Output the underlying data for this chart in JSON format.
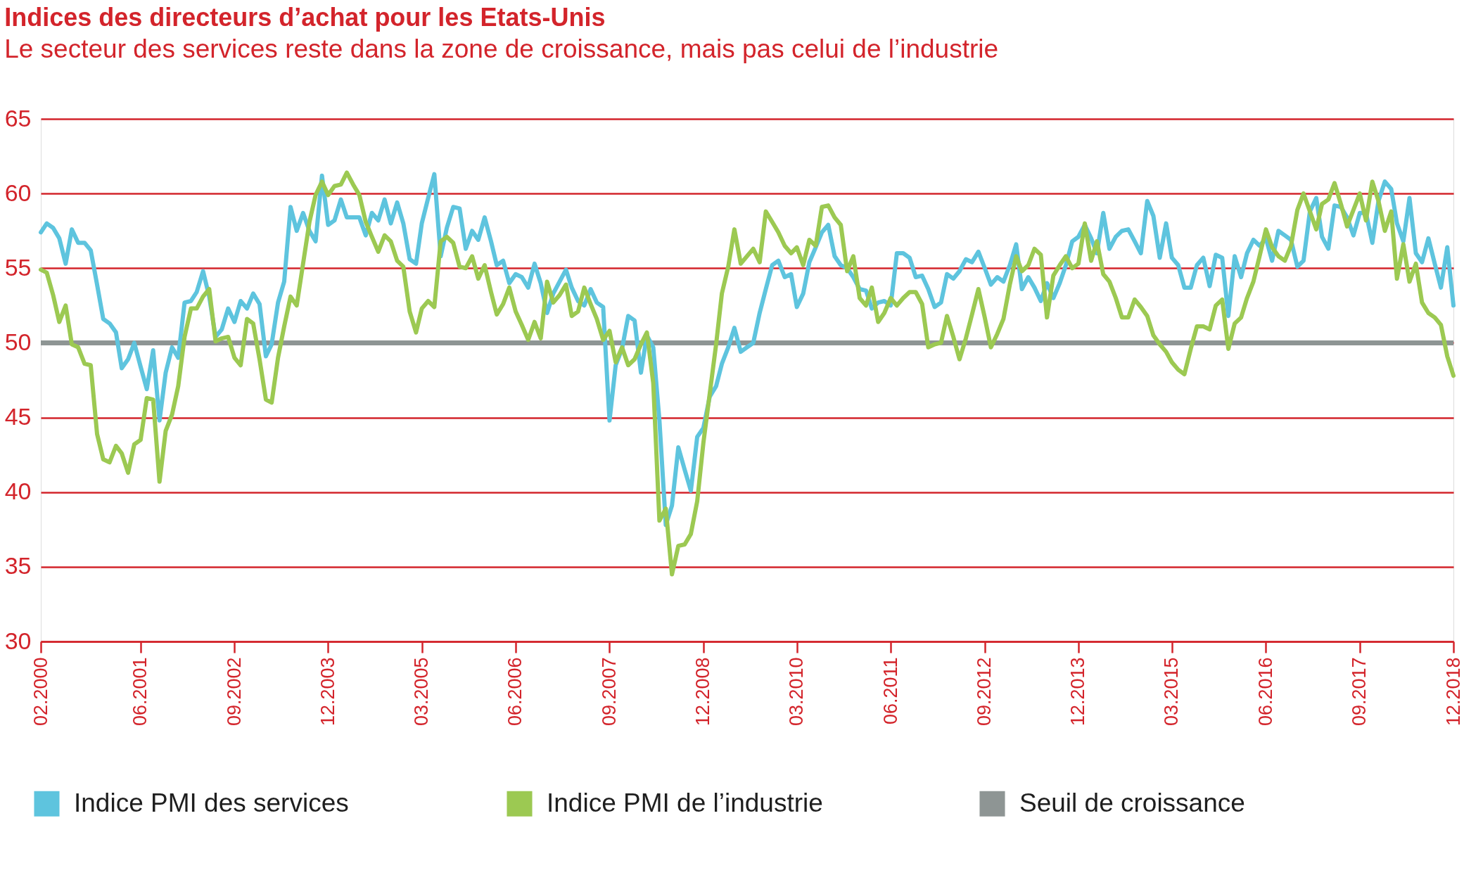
{
  "chart_data": {
    "type": "line",
    "title": "Indices des directeurs d’achat pour les Etats-Unis",
    "subtitle": "Le secteur des services reste dans la zone de croissance, mais pas celui de l’industrie",
    "x": [
      "2000-02",
      "2000-03",
      "2000-04",
      "2000-05",
      "2000-06",
      "2000-07",
      "2000-08",
      "2000-09",
      "2000-10",
      "2000-11",
      "2000-12",
      "2001-01",
      "2001-02",
      "2001-03",
      "2001-04",
      "2001-05",
      "2001-06",
      "2001-07",
      "2001-08",
      "2001-09",
      "2001-10",
      "2001-11",
      "2001-12",
      "2002-01",
      "2002-02",
      "2002-03",
      "2002-04",
      "2002-05",
      "2002-06",
      "2002-07",
      "2002-08",
      "2002-09",
      "2002-10",
      "2002-11",
      "2002-12",
      "2003-01",
      "2003-02",
      "2003-03",
      "2003-04",
      "2003-05",
      "2003-06",
      "2003-07",
      "2003-08",
      "2003-09",
      "2003-10",
      "2003-11",
      "2003-12",
      "2004-01",
      "2004-02",
      "2004-03",
      "2004-04",
      "2004-05",
      "2004-06",
      "2004-07",
      "2004-08",
      "2004-09",
      "2004-10",
      "2004-11",
      "2004-12",
      "2005-01",
      "2005-02",
      "2005-03",
      "2005-04",
      "2005-05",
      "2005-06",
      "2005-07",
      "2005-08",
      "2005-09",
      "2005-10",
      "2005-11",
      "2005-12",
      "2006-01",
      "2006-02",
      "2006-03",
      "2006-04",
      "2006-05",
      "2006-06",
      "2006-07",
      "2006-08",
      "2006-09",
      "2006-10",
      "2006-11",
      "2006-12",
      "2007-01",
      "2007-02",
      "2007-03",
      "2007-04",
      "2007-05",
      "2007-06",
      "2007-07",
      "2007-08",
      "2007-09",
      "2007-10",
      "2007-11",
      "2007-12",
      "2008-01",
      "2008-02",
      "2008-03",
      "2008-04",
      "2008-05",
      "2008-06",
      "2008-07",
      "2008-08",
      "2008-09",
      "2008-10",
      "2008-11",
      "2008-12",
      "2009-01",
      "2009-02",
      "2009-03",
      "2009-04",
      "2009-05",
      "2009-06",
      "2009-07",
      "2009-08",
      "2009-09",
      "2009-10",
      "2009-11",
      "2009-12",
      "2010-01",
      "2010-02",
      "2010-03",
      "2010-04",
      "2010-05",
      "2010-06",
      "2010-07",
      "2010-08",
      "2010-09",
      "2010-10",
      "2010-11",
      "2010-12",
      "2011-01",
      "2011-02",
      "2011-03",
      "2011-04",
      "2011-05",
      "2011-06",
      "2011-07",
      "2011-08",
      "2011-09",
      "2011-10",
      "2011-11",
      "2011-12",
      "2012-01",
      "2012-02",
      "2012-03",
      "2012-04",
      "2012-05",
      "2012-06",
      "2012-07",
      "2012-08",
      "2012-09",
      "2012-10",
      "2012-11",
      "2012-12",
      "2013-01",
      "2013-02",
      "2013-03",
      "2013-04",
      "2013-05",
      "2013-06",
      "2013-07",
      "2013-08",
      "2013-09",
      "2013-10",
      "2013-11",
      "2013-12",
      "2014-01",
      "2014-02",
      "2014-03",
      "2014-04",
      "2014-05",
      "2014-06",
      "2014-07",
      "2014-08",
      "2014-09",
      "2014-10",
      "2014-11",
      "2014-12",
      "2015-01",
      "2015-02",
      "2015-03",
      "2015-04",
      "2015-05",
      "2015-06",
      "2015-07",
      "2015-08",
      "2015-09",
      "2015-10",
      "2015-11",
      "2015-12",
      "2016-01",
      "2016-02",
      "2016-03",
      "2016-04",
      "2016-05",
      "2016-06",
      "2016-07",
      "2016-08",
      "2016-09",
      "2016-10",
      "2016-11",
      "2016-12",
      "2017-01",
      "2017-02",
      "2017-03",
      "2017-04",
      "2017-05",
      "2017-06",
      "2017-07",
      "2017-08",
      "2017-09",
      "2017-10",
      "2017-11",
      "2017-12",
      "2018-01",
      "2018-02",
      "2018-03",
      "2018-04",
      "2018-05",
      "2018-06",
      "2018-07",
      "2018-08",
      "2018-09",
      "2018-10",
      "2018-11",
      "2018-12"
    ],
    "xlim": [
      "2000-02",
      "2018-12"
    ],
    "xticks": [
      {
        "value": "2000-02",
        "label": "02.2000"
      },
      {
        "value": "2001-06",
        "label": "06.2001"
      },
      {
        "value": "2002-09",
        "label": "09.2002"
      },
      {
        "value": "2003-12",
        "label": "12.2003"
      },
      {
        "value": "2005-03",
        "label": "03.2005"
      },
      {
        "value": "2006-06",
        "label": "06.2006"
      },
      {
        "value": "2007-09",
        "label": "09.2007"
      },
      {
        "value": "2008-12",
        "label": "12.2008"
      },
      {
        "value": "2010-03",
        "label": "03.2010"
      },
      {
        "value": "2011-06",
        "label": "06.2011"
      },
      {
        "value": "2012-09",
        "label": "09.2012"
      },
      {
        "value": "2013-12",
        "label": "12.2013"
      },
      {
        "value": "2015-03",
        "label": "03.2015"
      },
      {
        "value": "2016-06",
        "label": "06.2016"
      },
      {
        "value": "2017-09",
        "label": "09.2017"
      },
      {
        "value": "2018-12",
        "label": "12.2018"
      }
    ],
    "ylim": [
      30,
      65
    ],
    "yticks": [
      30,
      35,
      40,
      45,
      50,
      55,
      60,
      65
    ],
    "series": [
      {
        "name": "Indice PMI des services",
        "color": "#5ec4de",
        "values": [
          57.4,
          58.0,
          57.7,
          57.0,
          55.3,
          57.6,
          56.7,
          56.7,
          56.2,
          53.9,
          51.6,
          51.3,
          50.7,
          48.3,
          48.9,
          50.0,
          48.4,
          46.9,
          49.5,
          44.8,
          48.0,
          49.7,
          49.0,
          52.7,
          52.8,
          53.4,
          54.8,
          53.1,
          50.4,
          50.9,
          52.3,
          51.4,
          52.8,
          52.3,
          53.3,
          52.6,
          49.1,
          49.9,
          52.7,
          54.1,
          59.1,
          57.5,
          58.7,
          57.5,
          56.8,
          61.2,
          57.9,
          58.2,
          59.6,
          58.4,
          58.4,
          58.4,
          57.2,
          58.7,
          58.2,
          59.6,
          58.0,
          59.4,
          58.0,
          55.6,
          55.3,
          58.0,
          59.7,
          61.3,
          55.8,
          57.7,
          59.1,
          59.0,
          56.3,
          57.5,
          56.9,
          58.4,
          56.8,
          55.2,
          55.5,
          54.0,
          54.6,
          54.4,
          53.7,
          55.3,
          54.0,
          52.0,
          53.3,
          54.1,
          54.9,
          53.7,
          52.8,
          52.5,
          53.6,
          52.7,
          52.4,
          44.8,
          48.5,
          49.6,
          51.8,
          51.5,
          48.0,
          50.5,
          49.7,
          44.8,
          37.8,
          39.1,
          43.0,
          41.5,
          40.1,
          43.7,
          44.3,
          46.4,
          47.1,
          48.6,
          49.7,
          51.0,
          49.4,
          49.7,
          50.0,
          52.0,
          53.6,
          55.2,
          55.5,
          54.4,
          54.6,
          52.4,
          53.3,
          55.4,
          56.4,
          57.4,
          57.9,
          55.8,
          55.2,
          55.0,
          54.4,
          53.6,
          53.5,
          52.3,
          52.7,
          52.8,
          52.5,
          56.0,
          56.0,
          55.7,
          54.4,
          54.5,
          53.6,
          52.4,
          52.7,
          54.6,
          54.3,
          54.8,
          55.6,
          55.4,
          56.1,
          55.0,
          53.9,
          54.4,
          54.1,
          55.2,
          56.6,
          53.6,
          54.4,
          53.7,
          52.8,
          54.0,
          53.0,
          54.0,
          55.2,
          56.8,
          57.1,
          57.9,
          57.0,
          56.0,
          58.7,
          56.3,
          57.1,
          57.5,
          57.6,
          56.8,
          56.0,
          59.5,
          58.5,
          55.7,
          58.0,
          55.7,
          55.2,
          53.7,
          53.7,
          55.2,
          55.7,
          53.8,
          55.9,
          55.7,
          51.8,
          55.8,
          54.4,
          56.0,
          56.9,
          56.5,
          57.0,
          55.5,
          57.5,
          57.2,
          56.9,
          55.1,
          55.5,
          58.8,
          59.7,
          57.1,
          56.3,
          59.2,
          59.1,
          58.4,
          57.2,
          58.7,
          58.7,
          56.7,
          59.5,
          60.8,
          60.3,
          58.0,
          56.8,
          59.7,
          56.0,
          55.4,
          57.0,
          55.3,
          53.7,
          56.4,
          52.5
        ]
      },
      {
        "name": "Indice PMI de l’industrie",
        "color": "#9cc952",
        "values": [
          54.9,
          54.7,
          53.2,
          51.4,
          52.5,
          49.9,
          49.7,
          48.6,
          48.5,
          43.9,
          42.2,
          42.0,
          43.1,
          42.6,
          41.3,
          43.2,
          43.5,
          46.3,
          46.2,
          40.7,
          44.1,
          45.2,
          47.1,
          50.4,
          52.3,
          52.3,
          53.1,
          53.6,
          50.1,
          50.3,
          50.4,
          49.0,
          48.5,
          51.6,
          51.3,
          48.9,
          46.2,
          46.0,
          49.0,
          51.1,
          53.1,
          52.5,
          55.3,
          58.1,
          59.9,
          60.8,
          59.9,
          60.5,
          60.6,
          61.4,
          60.6,
          59.9,
          58.1,
          57.1,
          56.1,
          57.2,
          56.8,
          55.5,
          55.1,
          52.1,
          50.7,
          52.3,
          52.8,
          52.4,
          56.8,
          57.1,
          56.7,
          55.1,
          55.0,
          55.8,
          54.3,
          55.2,
          53.4,
          51.9,
          52.6,
          53.7,
          52.1,
          51.2,
          50.2,
          51.4,
          50.3,
          54.1,
          52.7,
          53.2,
          53.9,
          51.8,
          52.1,
          53.7,
          52.6,
          51.6,
          50.2,
          50.8,
          48.7,
          49.7,
          48.5,
          48.9,
          49.9,
          50.7,
          47.3,
          38.1,
          38.9,
          34.5,
          36.4,
          36.5,
          37.2,
          39.4,
          43.3,
          46.6,
          49.9,
          53.3,
          55.1,
          57.6,
          55.3,
          55.8,
          56.3,
          55.4,
          58.8,
          58.1,
          57.4,
          56.5,
          56.0,
          56.4,
          55.2,
          56.9,
          56.5,
          59.1,
          59.2,
          58.4,
          57.9,
          54.8,
          55.8,
          53.0,
          52.5,
          53.7,
          51.4,
          52.0,
          53.0,
          52.5,
          53.0,
          53.4,
          53.4,
          52.6,
          49.7,
          49.9,
          50.0,
          51.8,
          50.4,
          48.9,
          50.3,
          51.9,
          53.6,
          51.7,
          49.7,
          50.6,
          51.6,
          53.9,
          55.8,
          54.8,
          55.2,
          56.3,
          55.9,
          51.7,
          54.5,
          55.2,
          55.8,
          55.0,
          55.3,
          58.0,
          55.5,
          56.8,
          54.6,
          54.1,
          53.0,
          51.7,
          51.7,
          52.9,
          52.4,
          51.8,
          50.5,
          49.9,
          49.4,
          48.7,
          48.2,
          47.9,
          49.6,
          51.1,
          51.1,
          50.9,
          52.5,
          52.9,
          49.6,
          51.3,
          51.7,
          53.0,
          54.1,
          55.8,
          57.6,
          56.4,
          55.8,
          55.5,
          56.5,
          58.9,
          60.0,
          58.8,
          57.6,
          59.3,
          59.6,
          60.7,
          59.3,
          57.8,
          58.9,
          60.0,
          58.2,
          60.8,
          59.5,
          57.5,
          58.8,
          54.3,
          56.6,
          54.1,
          55.3,
          52.7,
          52.0,
          51.7,
          51.2,
          49.1,
          47.8
        ]
      }
    ],
    "ref_lines": [
      {
        "axis": "y",
        "value": 50,
        "label": "Seuil de croissance",
        "color": "#8e9594"
      }
    ],
    "grid": "y",
    "legend": "bottom"
  }
}
